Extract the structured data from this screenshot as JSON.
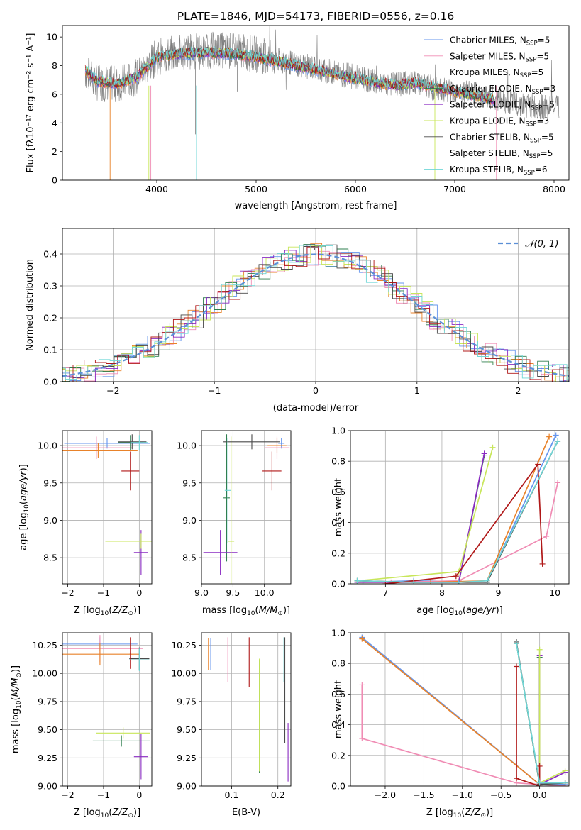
{
  "colors": {
    "chabrier_miles": "#6495ED",
    "salpeter_miles": "#F08CB4",
    "kroupa_miles": "#E8822A",
    "chabrier_elodie": "#2F7F4F",
    "salpeter_elodie": "#8A2BC2",
    "kroupa_elodie": "#C8E65A",
    "chabrier_stelib": "#4A4A4A",
    "salpeter_stelib": "#B01818",
    "kroupa_stelib": "#6FD6D6",
    "observed": "#808080",
    "normal": "#5B8FD6"
  },
  "chart_data": [
    {
      "type": "line",
      "title": "PLATE=1846, MJD=54173, FIBERID=0556, z=0.16",
      "xlabel": "wavelength [Angstrom, rest frame]",
      "ylabel": "Flux [fλ10⁻¹⁷ erg cm⁻² s⁻¹ A⁻¹]",
      "xlim": [
        3050,
        8150
      ],
      "ylim": [
        0,
        10.8
      ],
      "xticks": [
        "4000",
        "5000",
        "6000",
        "7000",
        "8000"
      ],
      "yticks": [
        "0",
        "2",
        "4",
        "6",
        "8",
        "10"
      ],
      "legend": "top-right",
      "observed": {
        "x": [
          3280,
          3400,
          3600,
          3800,
          4000,
          4200,
          4400,
          4600,
          4800,
          5000,
          5200,
          5400,
          5600,
          5800,
          6000,
          6200,
          6400,
          6600,
          6800,
          7000,
          7200,
          7400,
          7600,
          7800,
          8000
        ],
        "y": [
          7.6,
          6.8,
          6.7,
          7.2,
          8.6,
          8.9,
          9.0,
          9.1,
          9.0,
          8.8,
          8.4,
          8.1,
          7.8,
          7.5,
          7.2,
          6.9,
          6.7,
          6.8,
          6.4,
          6.3,
          6.0,
          5.7,
          5.4,
          5.1,
          5.1
        ]
      },
      "models": {
        "x": [
          3280,
          3400,
          3600,
          3800,
          4000,
          4200,
          4400,
          4600,
          4800,
          5000,
          5200,
          5400,
          5600,
          5800,
          6000,
          6200,
          6400,
          6600,
          6800,
          7000,
          7200,
          7400
        ],
        "y": [
          7.7,
          6.9,
          6.7,
          7.2,
          8.6,
          8.8,
          8.9,
          8.9,
          8.8,
          8.6,
          8.3,
          8.0,
          7.7,
          7.4,
          7.1,
          6.8,
          6.6,
          6.8,
          6.5,
          6.2,
          5.9,
          5.6
        ]
      },
      "series": [
        {
          "name": "Chabrier MILES, N",
          "nssp": "5"
        },
        {
          "name": "Salpeter MILES, N",
          "nssp": "5"
        },
        {
          "name": "Kroupa MILES, N",
          "nssp": "5"
        },
        {
          "name": "Chabrier ELODIE, N",
          "nssp": "3"
        },
        {
          "name": "Salpeter ELODIE, N",
          "nssp": "5"
        },
        {
          "name": "Kroupa ELODIE, N",
          "nssp": "3"
        },
        {
          "name": "Chabrier STELIB, N",
          "nssp": "5"
        },
        {
          "name": "Salpeter STELIB, N",
          "nssp": "5"
        },
        {
          "name": "Kroupa STELIB, N",
          "nssp": "6"
        }
      ],
      "nssp_subscript": "SSP"
    },
    {
      "type": "line",
      "xlabel": "(data-model)/error",
      "ylabel": "Normed distribution",
      "xlim": [
        -2.5,
        2.5
      ],
      "ylim": [
        0,
        0.48
      ],
      "xticks": [
        "−2",
        "−1",
        "0",
        "1",
        "2"
      ],
      "yticks": [
        "0.0",
        "0.1",
        "0.2",
        "0.3",
        "0.4"
      ],
      "legend": "top-right",
      "legend_label": "𝒩(0, 1)",
      "grid": true
    },
    {
      "type": "scatter",
      "xlabel": "Z [log10(Z/Z⊙)]",
      "ylabel": "age  [log10(age/yr)]",
      "xlim": [
        -2.15,
        0.35
      ],
      "ylim": [
        8.15,
        10.2
      ],
      "xticks": [
        "−2",
        "−1",
        "0"
      ],
      "yticks": [
        "8.5",
        "9.0",
        "9.5",
        "10.0"
      ],
      "points": [
        {
          "s": 0,
          "x": -0.9,
          "y": 10.03,
          "xe": 1.2,
          "ye": 0.07
        },
        {
          "s": 1,
          "x": -1.2,
          "y": 9.97,
          "xe": 1.0,
          "ye": 0.15
        },
        {
          "s": 2,
          "x": -1.15,
          "y": 9.93,
          "xe": 1.1,
          "ye": 0.1
        },
        {
          "s": 3,
          "x": -0.25,
          "y": 10.04,
          "xe": 0.35,
          "ye": 0.1
        },
        {
          "s": 4,
          "x": 0.05,
          "y": 8.57,
          "xe": 0.2,
          "ye": 0.3
        },
        {
          "s": 5,
          "x": 0.05,
          "y": 8.72,
          "xe": 1.0,
          "ye": 0.1
        },
        {
          "s": 6,
          "x": -0.2,
          "y": 10.05,
          "xe": 0.4,
          "ye": 0.1
        },
        {
          "s": 7,
          "x": -0.25,
          "y": 9.66,
          "xe": 0.25,
          "ye": 0.26
        },
        {
          "s": 8,
          "x": 0.0,
          "y": 10.04,
          "xe": 0.25,
          "ye": 0.1
        }
      ]
    },
    {
      "type": "scatter",
      "xlabel": "mass [log10(M/M⊙)]",
      "ylabel": "",
      "xlim": [
        9.0,
        10.42
      ],
      "ylim": [
        8.15,
        10.2
      ],
      "xticks": [
        "9.0",
        "9.5",
        "10.0"
      ],
      "yticks": [
        "8.5",
        "9.0",
        "9.5",
        "10.0"
      ],
      "points": [
        {
          "s": 0,
          "x": 10.27,
          "y": 10.03,
          "xe": 0.05,
          "ye": 0.07
        },
        {
          "s": 1,
          "x": 10.2,
          "y": 9.97,
          "xe": 0.2,
          "ye": 0.15
        },
        {
          "s": 2,
          "x": 10.2,
          "y": 10.0,
          "xe": 0.15,
          "ye": 0.1
        },
        {
          "s": 3,
          "x": 9.4,
          "y": 9.3,
          "xe": 0.05,
          "ye": 0.85
        },
        {
          "s": 4,
          "x": 9.3,
          "y": 8.57,
          "xe": 0.27,
          "ye": 0.3
        },
        {
          "s": 5,
          "x": 9.47,
          "y": 8.72,
          "xe": 0.05,
          "ye": 1.4
        },
        {
          "s": 6,
          "x": 9.8,
          "y": 10.05,
          "xe": 0.45,
          "ye": 0.1
        },
        {
          "s": 7,
          "x": 10.12,
          "y": 9.66,
          "xe": 0.15,
          "ye": 0.26
        },
        {
          "s": 8,
          "x": 9.42,
          "y": 9.4,
          "xe": 0.05,
          "ye": 0.7
        }
      ]
    },
    {
      "type": "line",
      "xlabel": "age  [log10(age/yr)]",
      "ylabel": "mass weight",
      "xlim": [
        6.38,
        10.25
      ],
      "ylim": [
        0,
        1.0
      ],
      "xticks": [
        "7",
        "8",
        "9",
        "10"
      ],
      "yticks": [
        "0.0",
        "0.2",
        "0.4",
        "0.6",
        "0.8",
        "1.0"
      ],
      "grid": true,
      "series": [
        {
          "s": 0,
          "x": [
            6.6,
            7.5,
            8.8,
            10.02
          ],
          "y": [
            0.01,
            0.02,
            0.01,
            0.97
          ]
        },
        {
          "s": 1,
          "x": [
            7.1,
            8.3,
            9.85,
            10.05
          ],
          "y": [
            0.01,
            0.02,
            0.31,
            0.66
          ]
        },
        {
          "s": 2,
          "x": [
            6.5,
            7.8,
            8.8,
            9.9
          ],
          "y": [
            0.01,
            0.01,
            0.02,
            0.96
          ]
        },
        {
          "s": 3,
          "x": [
            6.5,
            7.5,
            8.3,
            8.75
          ],
          "y": [
            0.02,
            0.01,
            0.01,
            0.84
          ]
        },
        {
          "s": 4,
          "x": [
            6.5,
            8.3,
            8.75
          ],
          "y": [
            0.01,
            0.01,
            0.85
          ]
        },
        {
          "s": 5,
          "x": [
            6.5,
            8.3,
            8.9
          ],
          "y": [
            0.02,
            0.08,
            0.89
          ]
        },
        {
          "s": 6,
          "x": [
            6.5,
            7.5,
            8.3,
            8.8,
            10.05
          ],
          "y": [
            0.02,
            0.01,
            0.01,
            0.01,
            0.93
          ]
        },
        {
          "s": 7,
          "x": [
            7.0,
            8.25,
            9.7,
            9.78
          ],
          "y": [
            0.0,
            0.05,
            0.78,
            0.13
          ]
        },
        {
          "s": 8,
          "x": [
            6.5,
            7.5,
            8.3,
            8.8,
            10.05
          ],
          "y": [
            0.02,
            0.01,
            0.01,
            0.02,
            0.93
          ]
        }
      ]
    },
    {
      "type": "scatter",
      "xlabel": "Z [log10(Z/Z⊙)]",
      "ylabel": "mass [log10(M/M⊙)]",
      "xlim": [
        -2.15,
        0.35
      ],
      "ylim": [
        9.0,
        10.36
      ],
      "xticks": [
        "−2",
        "−1",
        "0"
      ],
      "yticks": [
        "9.00",
        "9.25",
        "9.50",
        "9.75",
        "10.00",
        "10.25"
      ],
      "points": [
        {
          "s": 0,
          "x": -1.1,
          "y": 10.26,
          "xe": 1.05,
          "ye": 0.06
        },
        {
          "s": 1,
          "x": -1.1,
          "y": 10.22,
          "xe": 1.2,
          "ye": 0.12
        },
        {
          "s": 2,
          "x": -1.1,
          "y": 10.17,
          "xe": 1.1,
          "ye": 0.1
        },
        {
          "s": 3,
          "x": -0.5,
          "y": 9.4,
          "xe": 0.8,
          "ye": 0.05
        },
        {
          "s": 4,
          "x": 0.05,
          "y": 9.26,
          "xe": 0.2,
          "ye": 0.2
        },
        {
          "s": 5,
          "x": -0.45,
          "y": 9.47,
          "xe": 0.75,
          "ye": 0.05
        },
        {
          "s": 6,
          "x": 0.0,
          "y": 10.13,
          "xe": 0.28,
          "ye": 0.1
        },
        {
          "s": 7,
          "x": -0.25,
          "y": 10.18,
          "xe": 0.02,
          "ye": 0.14
        },
        {
          "s": 8,
          "x": 0.0,
          "y": 10.12,
          "xe": 0.28,
          "ye": 0.1
        }
      ]
    },
    {
      "type": "scatter",
      "xlabel": "E(B-V)",
      "ylabel": "",
      "xlim": [
        0.035,
        0.228
      ],
      "ylim": [
        9.0,
        10.36
      ],
      "xticks": [
        "0.1",
        "0.2"
      ],
      "yticks": [
        "9.00",
        "9.25",
        "9.50",
        "9.75",
        "10.00",
        "10.25"
      ],
      "points": [
        {
          "s": 0,
          "x": 0.055,
          "y": 10.17,
          "xe": 0.0,
          "ye": 0.14
        },
        {
          "s": 1,
          "x": 0.092,
          "y": 10.12,
          "xe": 0.0,
          "ye": 0.2
        },
        {
          "s": 2,
          "x": 0.05,
          "y": 10.17,
          "xe": 0.0,
          "ye": 0.14
        },
        {
          "s": 3,
          "x": 0.16,
          "y": 9.62,
          "xe": 0.0,
          "ye": 0.5
        },
        {
          "s": 4,
          "x": 0.222,
          "y": 9.3,
          "xe": 0.0,
          "ye": 0.26
        },
        {
          "s": 5,
          "x": 0.16,
          "y": 9.63,
          "xe": 0.0,
          "ye": 0.5
        },
        {
          "s": 6,
          "x": 0.215,
          "y": 9.85,
          "xe": 0.0,
          "ye": 0.47
        },
        {
          "s": 7,
          "x": 0.138,
          "y": 10.1,
          "xe": 0.0,
          "ye": 0.22
        },
        {
          "s": 8,
          "x": 0.213,
          "y": 10.12,
          "xe": 0.0,
          "ye": 0.2
        }
      ]
    },
    {
      "type": "line",
      "xlabel": "Z [log10(Z/Z⊙)]",
      "ylabel": "mass weight",
      "xlim": [
        -2.45,
        0.38
      ],
      "ylim": [
        0,
        1.0
      ],
      "xticks": [
        "−2.0",
        "−1.5",
        "−1.0",
        "−0.5",
        "0.0"
      ],
      "yticks": [
        "0.0",
        "0.2",
        "0.4",
        "0.6",
        "0.8",
        "1.0"
      ],
      "grid": true,
      "series": [
        {
          "s": 0,
          "x": [
            -2.3,
            0.0,
            0.33
          ],
          "y": [
            0.97,
            0.01,
            0.01
          ]
        },
        {
          "s": 1,
          "x": [
            -2.3,
            -2.3,
            -0.3,
            0.33
          ],
          "y": [
            0.66,
            0.31,
            0.02,
            0.0
          ]
        },
        {
          "s": 2,
          "x": [
            -2.3,
            0.0,
            0.33
          ],
          "y": [
            0.96,
            0.01,
            0.02
          ]
        },
        {
          "s": 3,
          "x": [
            -0.3,
            0.0,
            0.0
          ],
          "y": [
            0.93,
            0.01,
            0.84
          ]
        },
        {
          "s": 4,
          "x": [
            0.0,
            0.0,
            0.33
          ],
          "y": [
            0.85,
            0.01,
            0.09
          ]
        },
        {
          "s": 5,
          "x": [
            0.0,
            0.0,
            0.33
          ],
          "y": [
            0.89,
            0.02,
            0.1
          ]
        },
        {
          "s": 6,
          "x": [
            -0.3,
            0.0,
            0.33
          ],
          "y": [
            0.94,
            0.01,
            0.02
          ]
        },
        {
          "s": 7,
          "x": [
            -0.3,
            -0.3,
            0.0,
            0.0
          ],
          "y": [
            0.78,
            0.05,
            0.0,
            0.13
          ]
        },
        {
          "s": 8,
          "x": [
            -0.3,
            0.0,
            0.33
          ],
          "y": [
            0.93,
            0.02,
            0.02
          ]
        }
      ]
    }
  ]
}
